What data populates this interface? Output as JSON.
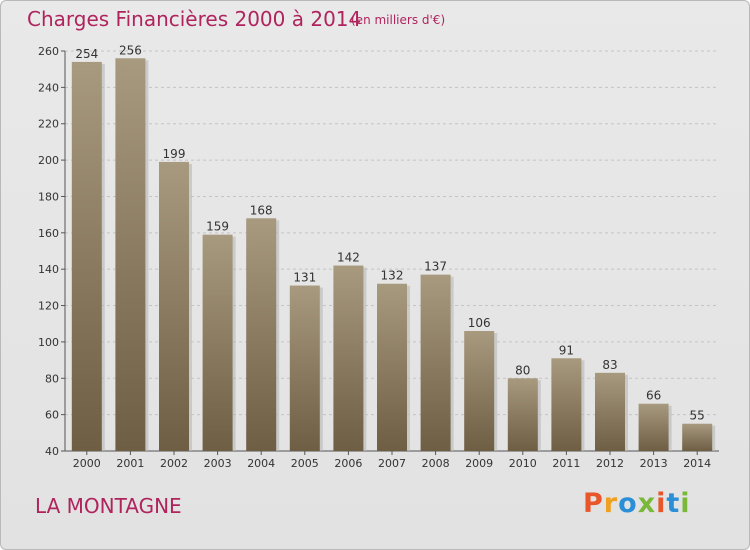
{
  "header": {
    "title": "Charges Financières 2000 à 2014",
    "subtitle": "(en milliers d'€)"
  },
  "footer": {
    "commune": "LA MONTAGNE",
    "brand": "Proxiti"
  },
  "colors": {
    "title": "#b0245e",
    "bar_top": "#a89a7e",
    "bar_bottom": "#6e5e44",
    "brand_letters": [
      "#e8562a",
      "#f0a020",
      "#2a8fd6",
      "#7ab83a",
      "#e8562a",
      "#2a8fd6",
      "#7ab83a"
    ]
  },
  "chart_data": {
    "type": "bar",
    "title": "Charges Financières 2000 à 2014",
    "subtitle": "(en milliers d'€)",
    "categories": [
      "2000",
      "2001",
      "2002",
      "2003",
      "2004",
      "2005",
      "2006",
      "2007",
      "2008",
      "2009",
      "2010",
      "2011",
      "2012",
      "2013",
      "2014"
    ],
    "values": [
      254,
      256,
      199,
      159,
      168,
      131,
      142,
      132,
      137,
      106,
      80,
      91,
      83,
      66,
      55
    ],
    "ylim": [
      40,
      260
    ],
    "yticks": [
      40,
      60,
      80,
      100,
      120,
      140,
      160,
      180,
      200,
      220,
      240,
      260
    ],
    "grid": true,
    "legend": "none"
  }
}
